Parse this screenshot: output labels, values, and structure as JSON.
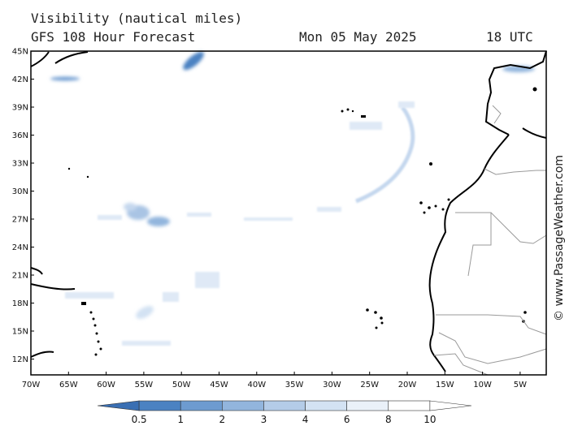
{
  "header": {
    "title": "Visibility (nautical miles)",
    "subtitle": "GFS 108 Hour Forecast",
    "date": "Mon 05 May 2025",
    "time": "18 UTC"
  },
  "axes": {
    "lat_labels": [
      "45N",
      "42N",
      "39N",
      "36N",
      "33N",
      "30N",
      "27N",
      "24N",
      "21N",
      "18N",
      "15N",
      "12N"
    ],
    "lon_labels": [
      "70W",
      "65W",
      "60W",
      "55W",
      "50W",
      "45W",
      "40W",
      "35W",
      "30W",
      "25W",
      "20W",
      "15W",
      "10W",
      "5W"
    ]
  },
  "legend": {
    "labels": [
      "0.5",
      "1",
      "2",
      "3",
      "4",
      "6",
      "8",
      "10"
    ],
    "colors": [
      "#3a6fb3",
      "#4b82c2",
      "#6d9bd0",
      "#92b5dd",
      "#b4cce8",
      "#d3e2f3",
      "#eaf1f9",
      "#ffffff"
    ]
  },
  "credit": "© www.PassageWeather.com",
  "colors": {
    "frame": "#000000",
    "land": "#000000",
    "border": "#9a9a9a"
  }
}
